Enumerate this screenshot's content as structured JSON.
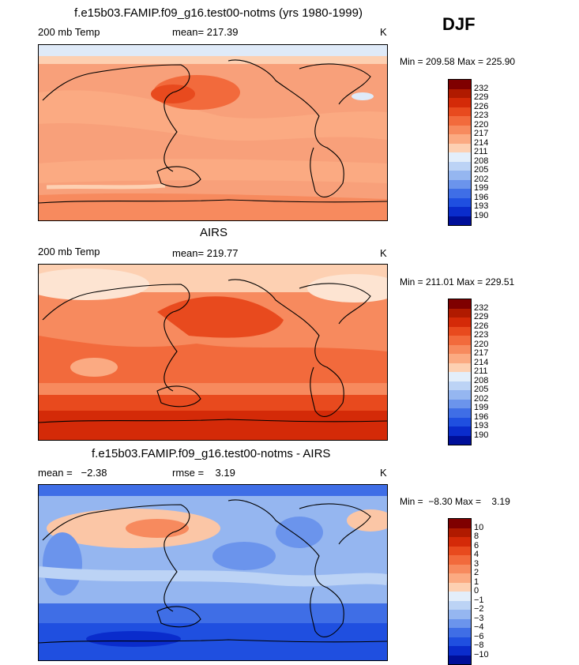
{
  "season": "DJF",
  "panels": [
    {
      "title": "f.e15b03.FAMIP.f09_g16.test00-notms (yrs 1980-1999)",
      "left_label": "200 mb Temp",
      "mid_label": "mean= 217.39",
      "units": "K",
      "minmax": "Min = 209.58 Max = 225.90"
    },
    {
      "title": "AIRS",
      "left_label": "200 mb Temp",
      "mid_label": "mean= 219.77",
      "units": "K",
      "minmax": "Min = 211.01 Max = 229.51"
    },
    {
      "title": "f.e15b03.FAMIP.f09_g16.test00-notms - AIRS",
      "left_label": "mean =   −2.38",
      "mid_label": "rmse =    3.19",
      "units": "K",
      "minmax": "Min =  −8.30 Max =    3.19"
    }
  ],
  "colorbars": {
    "colors": [
      "#7f0000",
      "#b01a00",
      "#d42a08",
      "#e84a1e",
      "#f26a3c",
      "#f78a5e",
      "#fbaa82",
      "#fdd0b2",
      "#e3eefa",
      "#bcd3f5",
      "#95b6f0",
      "#6b94ec",
      "#3f6ee6",
      "#1f4fe0",
      "#0a2ccc",
      "#000f99"
    ],
    "abs_ticks": [
      "232",
      "229",
      "226",
      "223",
      "220",
      "217",
      "214",
      "211",
      "208",
      "205",
      "202",
      "199",
      "196",
      "193",
      "190"
    ],
    "diff_ticks": [
      "10",
      "8",
      "6",
      "4",
      "3",
      "2",
      "1",
      "0",
      "−1",
      "−2",
      "−3",
      "−4",
      "−6",
      "−8",
      "−10"
    ]
  }
}
